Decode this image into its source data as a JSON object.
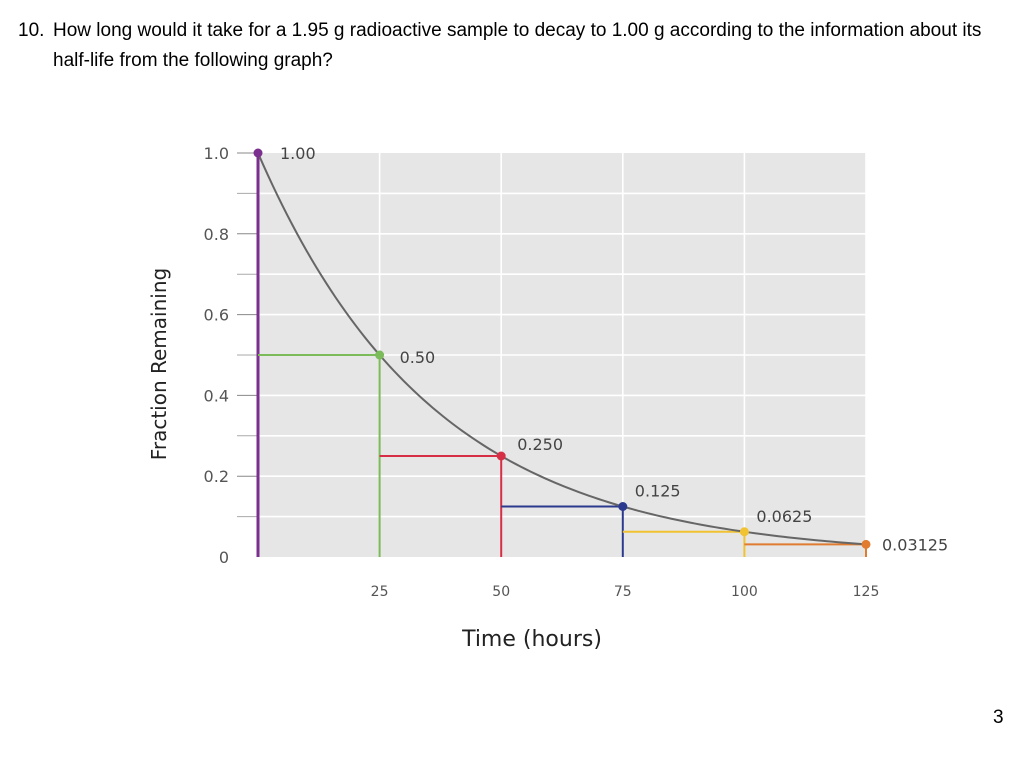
{
  "question": {
    "number": "10.",
    "text": "How long would it take for a 1.95 g radioactive sample to decay to 1.00 g according to the information about its half-life from the following graph?"
  },
  "page_number": "3",
  "chart_data": {
    "type": "line",
    "title": "",
    "xlabel": "Time (hours)",
    "ylabel": "Fraction Remaining",
    "xlim": [
      0,
      125
    ],
    "ylim": [
      0,
      1.0
    ],
    "x_ticks": [
      "25",
      "50",
      "75",
      "100",
      "125"
    ],
    "y_ticks": [
      "1.0",
      "0.8",
      "0.6",
      "0.4",
      "0.2",
      "0"
    ],
    "grid": true,
    "half_life_hours": 25,
    "curve": {
      "x": [
        0,
        25,
        50,
        75,
        100,
        125
      ],
      "y": [
        1.0,
        0.5,
        0.25,
        0.125,
        0.0625,
        0.03125
      ]
    },
    "points": [
      {
        "x": 0,
        "y": 1.0,
        "label": "1.00",
        "color": "#7b2f8f"
      },
      {
        "x": 25,
        "y": 0.5,
        "label": "0.50",
        "color": "#7cbb5a"
      },
      {
        "x": 50,
        "y": 0.25,
        "label": "0.250",
        "color": "#d62f45"
      },
      {
        "x": 75,
        "y": 0.125,
        "label": "0.125",
        "color": "#2b3a8e"
      },
      {
        "x": 100,
        "y": 0.0625,
        "label": "0.0625",
        "color": "#f1c232"
      },
      {
        "x": 125,
        "y": 0.03125,
        "label": "0.03125",
        "color": "#e07b2f"
      }
    ],
    "curve_color": "#666666",
    "plot_bg": "#e6e6e6"
  }
}
